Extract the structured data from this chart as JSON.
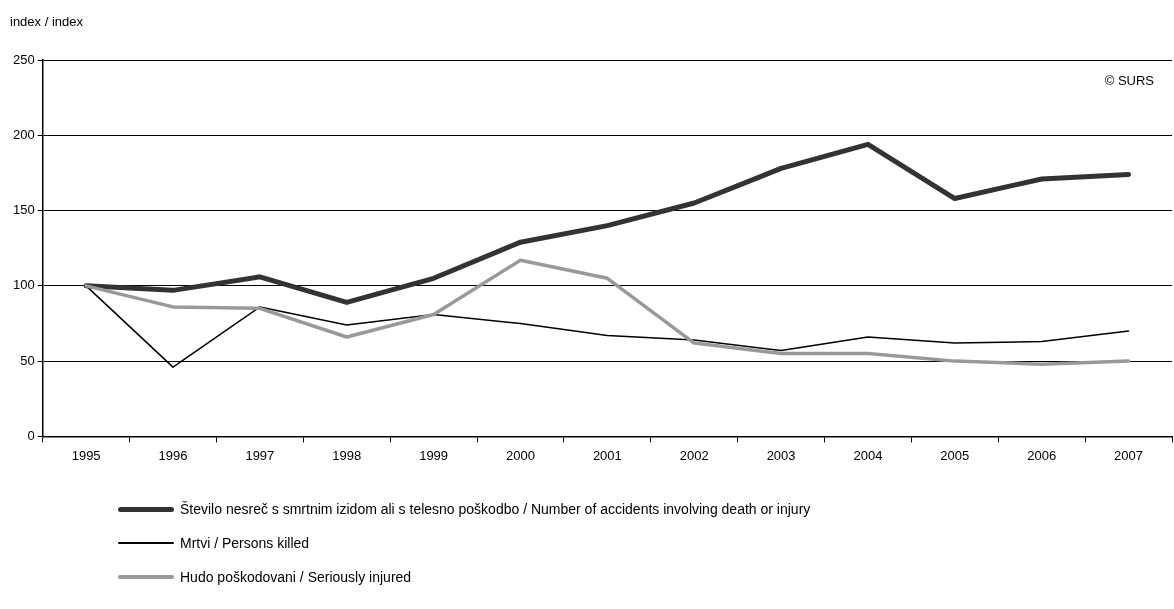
{
  "chart_data": {
    "type": "line",
    "ylabel": "index / index",
    "categories": [
      "1995",
      "1996",
      "1997",
      "1998",
      "1999",
      "2000",
      "2001",
      "2002",
      "2003",
      "2004",
      "2005",
      "2006",
      "2007"
    ],
    "series": [
      {
        "name": "Število nesreč s smrtnim izidom ali s telesno poškodbo / Number of accidents involving death or injury",
        "color": "#333333",
        "values": [
          100,
          97,
          106,
          89,
          105,
          129,
          140,
          155,
          178,
          194,
          158,
          171,
          174
        ]
      },
      {
        "name": "Mrtvi / Persons killed",
        "color": "#000000",
        "values": [
          100,
          46,
          86,
          74,
          81,
          75,
          67,
          64,
          57,
          66,
          62,
          63,
          70
        ]
      },
      {
        "name": "Hudo poškodovani / Seriously injured",
        "color": "#999999",
        "values": [
          100,
          86,
          85,
          66,
          81,
          117,
          105,
          62,
          55,
          55,
          50,
          48,
          50
        ]
      }
    ],
    "ylim": [
      0,
      250
    ],
    "yticks": [
      0,
      50,
      100,
      150,
      200,
      250
    ],
    "grid": "y",
    "legend": "bottom",
    "marker": "none",
    "line_style": "solid",
    "annotations": [
      "© SURS"
    ]
  }
}
